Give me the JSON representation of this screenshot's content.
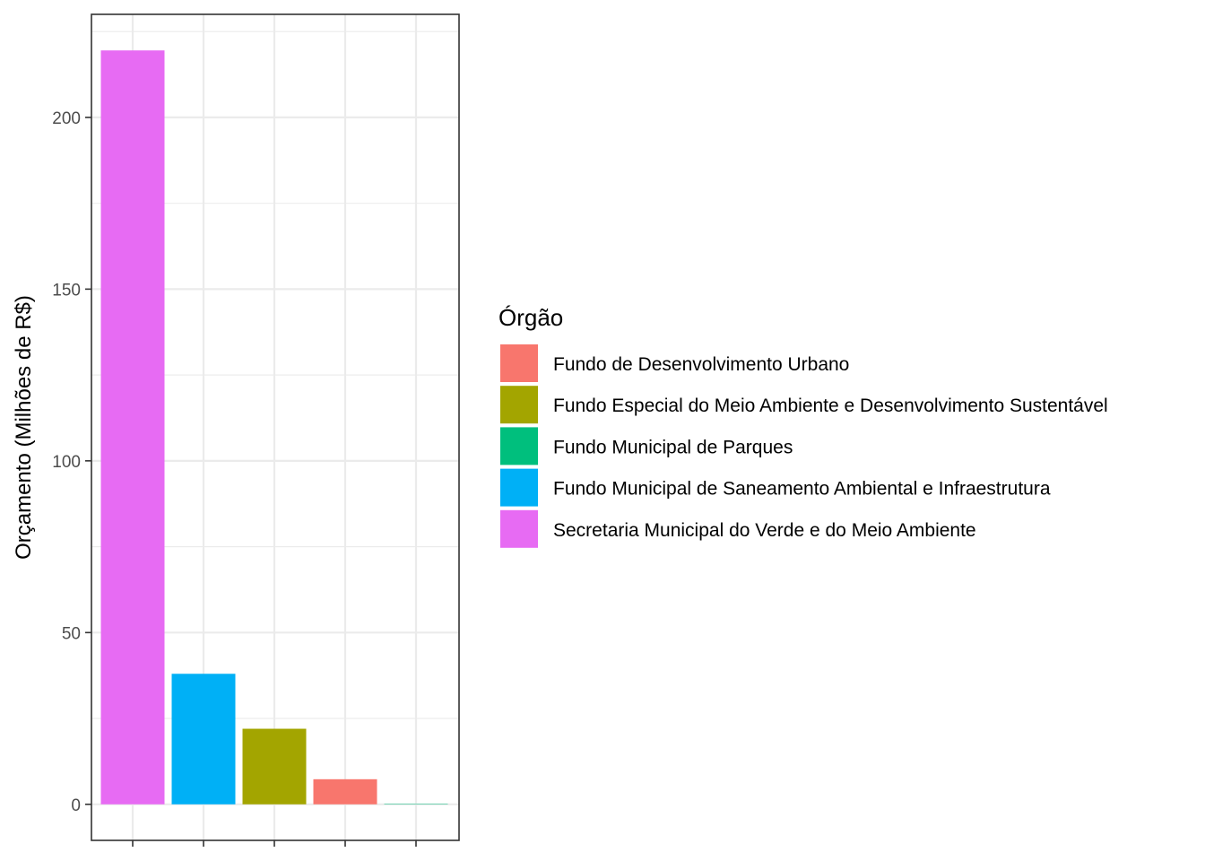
{
  "chart_data": {
    "type": "bar",
    "xlabel": "",
    "ylabel": "Orçamento (Milhões de R$)",
    "ylim": [
      -10.5,
      230
    ],
    "yticks": [
      0,
      50,
      100,
      150,
      200
    ],
    "ytick_labels": [
      "0",
      "50",
      "100",
      "150",
      "200"
    ],
    "grid": true,
    "legend_position": "right",
    "legend": {
      "title": "Órgão",
      "entries": [
        {
          "label": "Fundo de Desenvolvimento Urbano",
          "color": "#F8766D"
        },
        {
          "label": "Fundo Especial do Meio Ambiente e Desenvolvimento Sustentável",
          "color": "#A3A500"
        },
        {
          "label": "Fundo Municipal de Parques",
          "color": "#00BF7D"
        },
        {
          "label": "Fundo Municipal de Saneamento Ambiental e Infraestrutura",
          "color": "#00B0F6"
        },
        {
          "label": "Secretaria Municipal do Verde e do Meio Ambiente",
          "color": "#E76BF3"
        }
      ]
    },
    "bars": [
      {
        "series": "Secretaria Municipal do Verde e do Meio Ambiente",
        "value": 219.5,
        "color": "#E76BF3"
      },
      {
        "series": "Fundo Municipal de Saneamento Ambiental e Infraestrutura",
        "value": 38,
        "color": "#00B0F6"
      },
      {
        "series": "Fundo Especial do Meio Ambiente e Desenvolvimento Sustentável",
        "value": 22,
        "color": "#A3A500"
      },
      {
        "series": "Fundo de Desenvolvimento Urbano",
        "value": 7.3,
        "color": "#F8766D"
      },
      {
        "series": "Fundo Municipal de Parques",
        "value": 0.1,
        "color": "#00BF7D"
      }
    ]
  }
}
